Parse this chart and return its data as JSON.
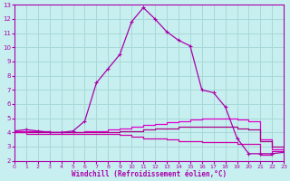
{
  "xlabel": "Windchill (Refroidissement éolien,°C)",
  "bg_color": "#c8efef",
  "grid_color": "#a8d8d8",
  "line_color": "#aa00aa",
  "xlim": [
    0,
    23
  ],
  "ylim": [
    2,
    13
  ],
  "yticks": [
    2,
    3,
    4,
    5,
    6,
    7,
    8,
    9,
    10,
    11,
    12,
    13
  ],
  "xticks": [
    0,
    1,
    2,
    3,
    4,
    5,
    6,
    7,
    8,
    9,
    10,
    11,
    12,
    13,
    14,
    15,
    16,
    17,
    18,
    19,
    20,
    21,
    22,
    23
  ],
  "hours": [
    0,
    1,
    2,
    3,
    4,
    5,
    6,
    7,
    8,
    9,
    10,
    11,
    12,
    13,
    14,
    15,
    16,
    17,
    18,
    19,
    20,
    21,
    22,
    23
  ],
  "line_main": [
    4.1,
    4.2,
    4.1,
    4.0,
    4.0,
    4.1,
    4.8,
    7.5,
    8.5,
    9.5,
    11.8,
    12.8,
    12.0,
    11.1,
    10.5,
    10.1,
    7.0,
    6.8,
    5.8,
    3.6,
    2.5,
    2.5,
    2.5,
    2.6
  ],
  "line_upper": [
    4.1,
    4.1,
    4.1,
    4.0,
    4.0,
    4.0,
    4.1,
    4.1,
    4.2,
    4.3,
    4.4,
    4.5,
    4.6,
    4.7,
    4.8,
    4.9,
    5.0,
    5.0,
    5.0,
    4.9,
    4.8,
    3.5,
    2.8,
    2.7
  ],
  "line_mid": [
    4.0,
    4.0,
    4.0,
    4.0,
    4.0,
    4.0,
    4.0,
    4.0,
    4.0,
    4.1,
    4.1,
    4.2,
    4.3,
    4.3,
    4.4,
    4.4,
    4.4,
    4.4,
    4.4,
    4.3,
    4.2,
    3.4,
    3.0,
    2.7
  ],
  "line_lower": [
    4.0,
    3.9,
    3.9,
    3.9,
    3.9,
    3.9,
    3.9,
    3.9,
    3.9,
    3.8,
    3.7,
    3.6,
    3.6,
    3.5,
    3.4,
    3.4,
    3.3,
    3.3,
    3.3,
    3.2,
    3.2,
    2.4,
    2.7,
    2.6
  ]
}
